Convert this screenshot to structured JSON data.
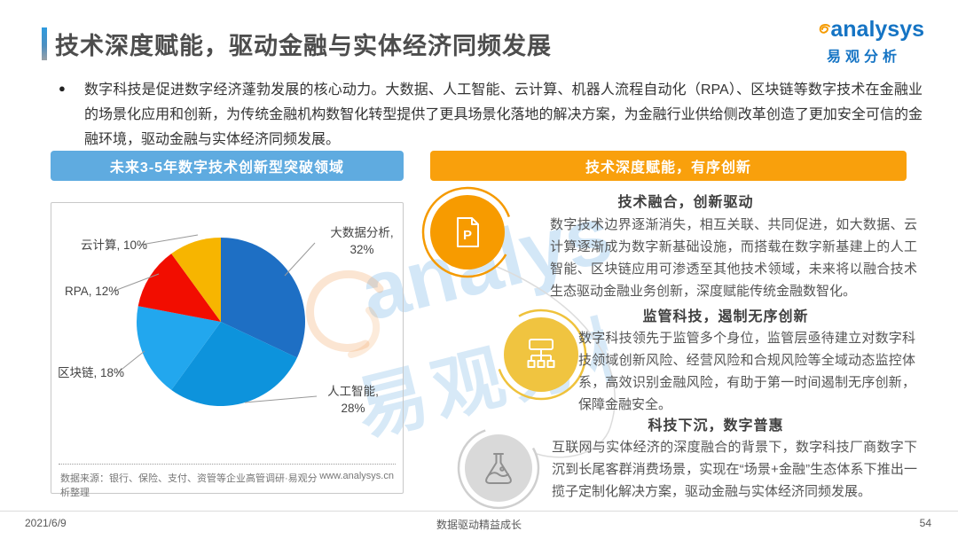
{
  "slide": {
    "title": "技术深度赋能，驱动金融与实体经济同频发展",
    "bullet_marker": "●",
    "bullet": "数字科技是促进数字经济蓬勃发展的核心动力。大数据、人工智能、云计算、机器人流程自动化（RPA）、区块链等数字技术在金融业的场景化应用和创新，为传统金融机构数智化转型提供了更具场景化落地的解决方案，为金融行业供给侧改革创造了更加安全可信的金融环境，驱动金融与实体经济同频发展。",
    "logo": {
      "brand": "analysys",
      "cn": "易观分析"
    },
    "watermark": {
      "latin": "analys",
      "cn": "易观分析"
    },
    "footer": {
      "date": "2021/6/9",
      "slogan": "数据驱动精益成长",
      "page": "54"
    }
  },
  "left_panel": {
    "header": "未来3-5年数字技术创新型突破领域",
    "source": "数据来源：银行、保险、支付、资管等企业高管调研·易观分析整理",
    "website": "www.analysys.cn"
  },
  "right_panel": {
    "header": "技术深度赋能，有序创新",
    "sections": [
      {
        "icon": "document-p-icon",
        "heading": "技术融合，创新驱动",
        "body": "数字技术边界逐渐消失，相互关联、共同促进，如大数据、云计算逐渐成为数字新基础设施，而搭载在数字新基建上的人工智能、区块链应用可渗透至其他技术领域，未来将以融合技术生态驱动金融业务创新，深度赋能传统金融数智化。"
      },
      {
        "icon": "org-chart-icon",
        "heading": "监管科技，遏制无序创新",
        "body": "数字科技领先于监管多个身位，监管层亟待建立对数字科技领域创新风险、经营风险和合规风险等全域动态监控体系，高效识别金融风险，有助于第一时间遏制无序创新，保障金融安全。"
      },
      {
        "icon": "flask-icon",
        "heading": "科技下沉，数字普惠",
        "body": "互联网与实体经济的深度融合的背景下，数字科技厂商数字下沉到长尾客群消费场景，实现在“场景+金融”生态体系下推出一揽子定制化解决方案，驱动金融与实体经济同频发展。"
      }
    ]
  },
  "chart_data": {
    "type": "pie",
    "title": "未来3-5年数字技术创新型突破领域",
    "categories": [
      "大数据分析",
      "人工智能",
      "区块链",
      "RPA",
      "云计算"
    ],
    "values": [
      32,
      28,
      18,
      12,
      10
    ],
    "unit": "%",
    "colors": [
      "#1e6fc4",
      "#0d93dc",
      "#22a7ee",
      "#f20d00",
      "#f7b500"
    ],
    "start_angle_deg": 0,
    "direction": "clockwise",
    "legend_position": "none",
    "labels": {
      "big_data_line1": "大数据分析,",
      "big_data_line2": "32%",
      "ai_line1": "人工智能,",
      "ai_line2": "28%",
      "blockchain": "区块链, 18%",
      "rpa": "RPA, 12%",
      "cloud": "云计算, 10%"
    }
  },
  "theme": {
    "header_blue": "#5fabe0",
    "header_orange": "#f9a00c",
    "brand_blue": "#1574c4",
    "brand_orange": "#f59a00"
  }
}
